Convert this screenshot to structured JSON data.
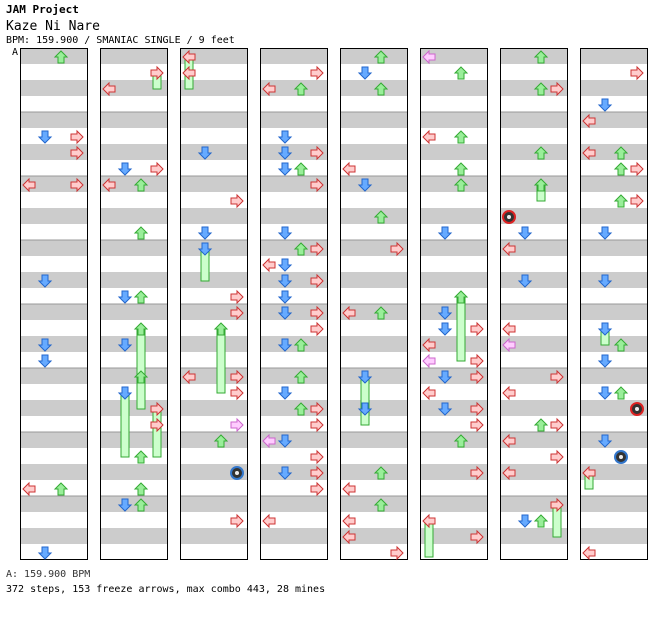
{
  "header": {
    "artist": "JAM Project",
    "title": "Kaze Ni Nare",
    "meta": "BPM: 159.900 / SMANIAC SINGLE / 9 feet"
  },
  "section_label": "A",
  "footer": {
    "bpm_line": "A: 159.900 BPM",
    "stats_line": "372 steps, 153 freeze arrows, max combo 443, 28 mines"
  },
  "colors": {
    "stripe": "#cccccc",
    "left": "#ffcccc",
    "left_stroke": "#cc3333",
    "down": "#66aaff",
    "down_stroke": "#2266cc",
    "up": "#99ee99",
    "up_stroke": "#33aa33",
    "right": "#ffcccc",
    "right_stroke": "#cc3333",
    "freeze": "#ccffcc",
    "freeze_stroke": "#33aa33",
    "mine_ring": "#dd2222",
    "mine_ring_blue": "#3377cc"
  },
  "chart_data": {
    "type": "step-chart",
    "columns": 8,
    "lanes": [
      "left",
      "down",
      "up",
      "right"
    ],
    "counts": {
      "steps": 372,
      "freeze_arrows": 153,
      "max_combo": 443,
      "mines": 28
    }
  }
}
